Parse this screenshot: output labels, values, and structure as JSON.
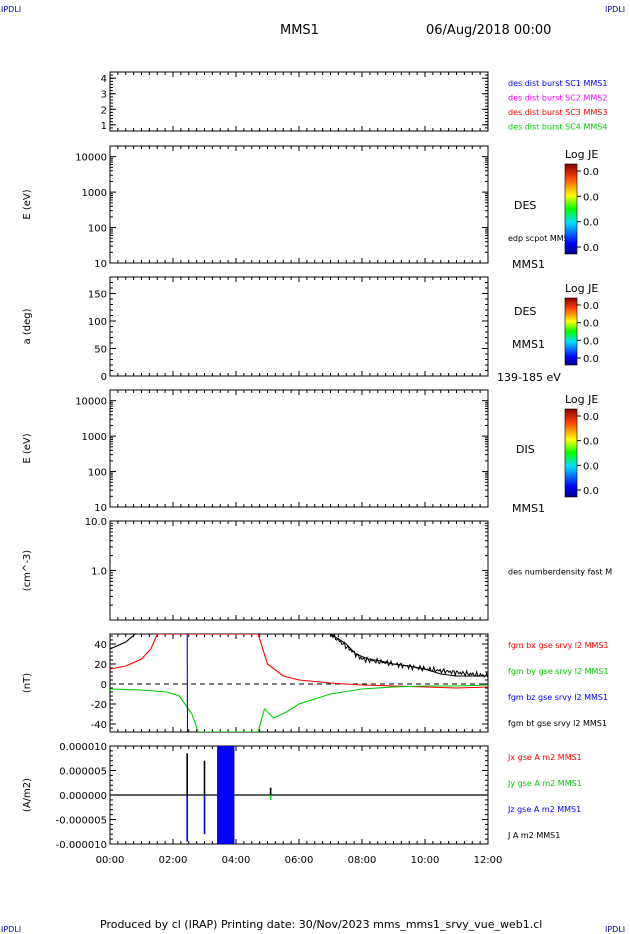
{
  "corner_label": "IPDLI",
  "header": {
    "spacecraft": "MMS1",
    "datetime": "06/Aug/2018 00:00"
  },
  "footer": "Produced by cl (IRAP)   Printing date: 30/Nov/2023   mms_mms1_srvy_vue_web1.cl",
  "time_axis": {
    "ticks": [
      "00:00",
      "02:00",
      "04:00",
      "06:00",
      "08:00",
      "10:00",
      "12:00"
    ]
  },
  "colorbar": {
    "title": "Log JE",
    "ticks": [
      "0.0",
      "0.0",
      "0.0",
      "0.0"
    ]
  },
  "colors": {
    "c1": "#0000ff",
    "c2": "#ff00ff",
    "c3": "#ff0000",
    "c4": "#00cc00",
    "bt": "#000000"
  },
  "chart_data": [
    {
      "type": "line",
      "panel": "spacecraft-flags",
      "ylabel": "",
      "ylim": [
        0.6,
        4.4
      ],
      "yticks": [
        1,
        2,
        3,
        4
      ],
      "legend": [
        {
          "label": "des dist burst SC1 MMS1",
          "color": "#0000ff"
        },
        {
          "label": "des dist burst SC2 MMS2",
          "color": "#ff00ff"
        },
        {
          "label": "des dist burst SC3 MMS3",
          "color": "#ff0000"
        },
        {
          "label": "des dist burst SC4 MMS4",
          "color": "#00cc00"
        }
      ],
      "series": []
    },
    {
      "type": "heatmap",
      "panel": "des-energy",
      "ylabel": "E (eV)",
      "scale": "log",
      "ylim": [
        10,
        20000
      ],
      "yticks": [
        "10",
        "100",
        "1000",
        "10000"
      ],
      "right_labels": [
        "DES",
        "edp scpot MMS1",
        "MMS1"
      ]
    },
    {
      "type": "heatmap",
      "panel": "des-pitch-angle",
      "ylabel": "a (deg)",
      "ylim": [
        0,
        180
      ],
      "yticks": [
        "0",
        "50",
        "100",
        "150"
      ],
      "right_labels": [
        "DES",
        "MMS1",
        "139-185 eV"
      ]
    },
    {
      "type": "heatmap",
      "panel": "dis-energy",
      "ylabel": "E (eV)",
      "scale": "log",
      "ylim": [
        10,
        20000
      ],
      "yticks": [
        "10",
        "100",
        "1000",
        "10000"
      ],
      "right_labels": [
        "DIS",
        "MMS1"
      ]
    },
    {
      "type": "line",
      "panel": "density",
      "ylabel": "(cm^-3)",
      "scale": "log",
      "ylim": [
        0.1,
        10
      ],
      "yticks": [
        "1.0",
        "10.0"
      ],
      "legend": [
        {
          "label": "des numberdensity fast M",
          "color": "#000000"
        }
      ],
      "series": []
    },
    {
      "type": "line",
      "panel": "magnetic-field",
      "ylabel": "(nT)",
      "ylim": [
        -48,
        50
      ],
      "yticks": [
        "-40",
        "-20",
        "0",
        "20",
        "40"
      ],
      "legend": [
        {
          "label": "fgm bx gse srvy l2 MMS1",
          "color": "#ff0000"
        },
        {
          "label": "fgm by gse srvy l2 MMS1",
          "color": "#00cc00"
        },
        {
          "label": "fgm bz gse srvy l2 MMS1",
          "color": "#0000ff"
        },
        {
          "label": "fgm bt gse srvy l2 MMS1",
          "color": "#000000"
        }
      ],
      "series": [
        {
          "name": "fgm bt gse srvy l2 MMS1",
          "color": "#000000",
          "x": [
            0.0,
            0.5,
            0.8,
            7.0,
            7.5,
            7.8,
            8.2,
            8.6,
            9.0,
            9.5,
            10.0,
            10.5,
            11.0,
            11.5,
            12.0
          ],
          "y": [
            35,
            42,
            50,
            50,
            40,
            30,
            25,
            23,
            20,
            18,
            15,
            10,
            8,
            8,
            8
          ]
        },
        {
          "name": "fgm bx gse srvy l2 MMS1",
          "color": "#ff0000",
          "x": [
            0.0,
            0.5,
            1.0,
            1.3,
            1.5,
            4.7,
            5.0,
            5.5,
            6.0,
            7.0,
            8.0,
            9.0,
            10.0,
            11.0,
            12.0
          ],
          "y": [
            15,
            18,
            25,
            35,
            50,
            50,
            20,
            8,
            4,
            1,
            -1,
            -2,
            -3,
            -4,
            -3
          ]
        },
        {
          "name": "fgm by gse srvy l2 MMS1",
          "color": "#00cc00",
          "x": [
            0.0,
            1.0,
            1.8,
            2.2,
            2.6,
            2.8,
            4.7,
            4.9,
            5.2,
            5.6,
            6.0,
            7.0,
            8.0,
            9.0,
            10.0,
            11.0,
            12.0
          ],
          "y": [
            -5,
            -6,
            -8,
            -12,
            -30,
            -48,
            -48,
            -25,
            -34,
            -28,
            -20,
            -10,
            -5,
            -3,
            -2,
            -2,
            -1
          ]
        },
        {
          "name": "fgm bz gse srvy l2 MMS1",
          "color": "#0000ff",
          "x": [
            2.45,
            2.46
          ],
          "y": [
            50,
            -48
          ]
        }
      ]
    },
    {
      "type": "line",
      "panel": "current-density",
      "ylabel": "(A/m2)",
      "ylim": [
        -1e-05,
        1e-05
      ],
      "yticks": [
        "-0.000010",
        "-0.000005",
        "0.000000",
        "0.000005",
        "0.000010"
      ],
      "legend": [
        {
          "label": "Jx gse A m2 MMS1",
          "color": "#ff0000"
        },
        {
          "label": "Jy gse A m2 MMS1",
          "color": "#00cc00"
        },
        {
          "label": "Jz gse A m2 MMS1",
          "color": "#0000ff"
        },
        {
          "label": "J A m2 MMS1",
          "color": "#000000"
        }
      ],
      "spikes": [
        {
          "x": 2.45,
          "color": "#000000",
          "y": 8.5e-06
        },
        {
          "x": 2.45,
          "color": "#0000ff",
          "y": -9.5e-06
        },
        {
          "x": 3.0,
          "color": "#000000",
          "y": 7e-06
        },
        {
          "x": 3.0,
          "color": "#0000ff",
          "y": -8e-06
        },
        {
          "x": 5.1,
          "color": "#000000",
          "y": 1.5e-06
        },
        {
          "x": 5.1,
          "color": "#00cc00",
          "y": -1e-06
        }
      ],
      "burst": {
        "x_start": 3.4,
        "x_end": 3.95,
        "ymin": -1e-05,
        "ymax": 1e-05,
        "color": "#0000ff"
      }
    }
  ]
}
